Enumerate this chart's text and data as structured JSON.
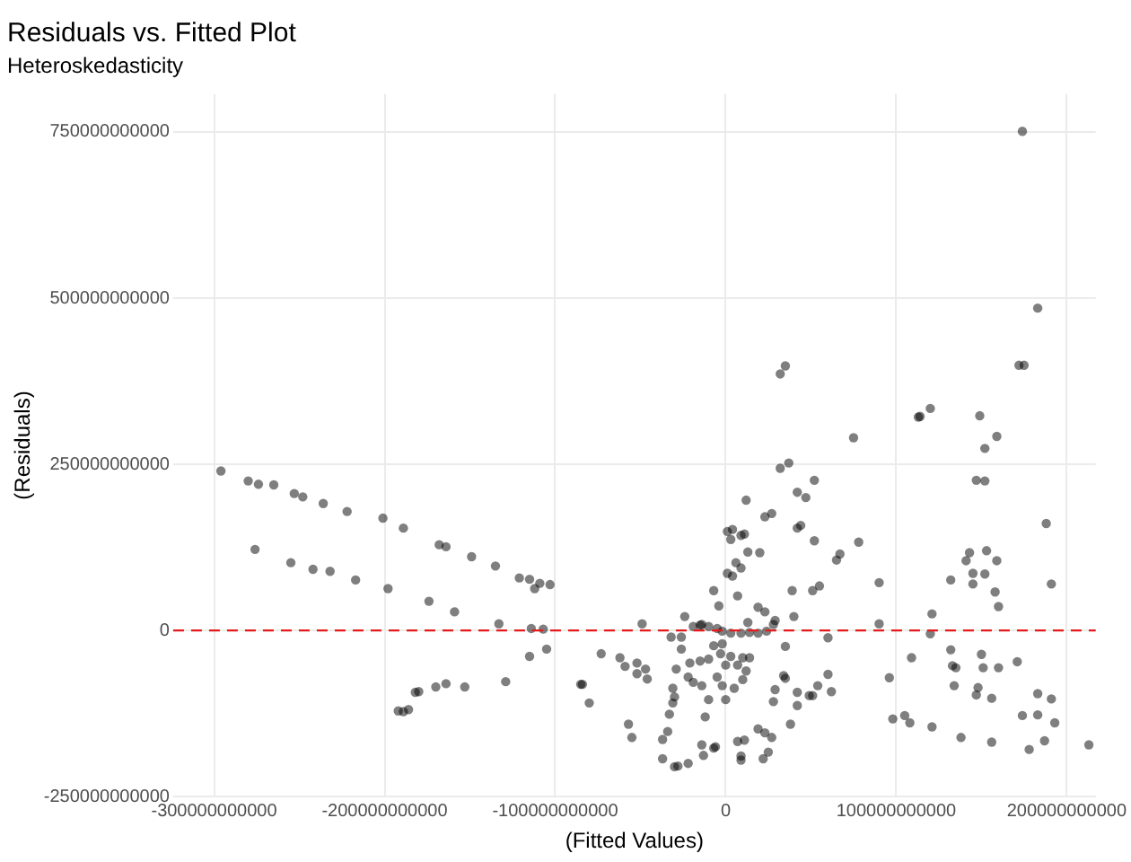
{
  "chart_data": {
    "type": "scatter",
    "title": "Residuals vs. Fitted Plot",
    "subtitle": "Heteroskedasticity",
    "xlabel": "(Fitted Values)",
    "ylabel": "(Residuals)",
    "xlim": [
      -324000000000,
      217000000000
    ],
    "xticks": [
      -300000000000,
      -200000000000,
      -100000000000,
      0,
      100000000000,
      200000000000
    ],
    "ylim": [
      -250000000000,
      807000000000
    ],
    "yticks": [
      -250000000000,
      0,
      250000000000,
      500000000000,
      750000000000
    ],
    "grid": true,
    "legend": false,
    "marker": "circle",
    "ref_lines": [
      {
        "axis": "y",
        "value": 0,
        "color": "#e41a1c",
        "line_style": "dashed"
      }
    ],
    "series": [
      {
        "color": "#000000",
        "x": [
          -296000000000.0,
          -280000000000.0,
          -274000000000.0,
          -265000000000.0,
          -253000000000.0,
          -248000000000.0,
          -236000000000.0,
          -222000000000.0,
          -201000000000.0,
          -189000000000.0,
          -168000000000.0,
          -164000000000.0,
          -149000000000.0,
          -135000000000.0,
          -121000000000.0,
          -115000000000.0,
          -112000000000.0,
          -109000000000.0,
          -103000000000.0,
          -276000000000.0,
          -255000000000.0,
          -242000000000.0,
          -232000000000.0,
          -217000000000.0,
          -198000000000.0,
          -174000000000.0,
          -159000000000.0,
          -133000000000.0,
          -114000000000.0,
          -107000000000.0,
          -105000000000.0,
          -115000000000.0,
          -129000000000.0,
          -153000000000.0,
          -164000000000.0,
          -170000000000.0,
          -180000000000.0,
          -182000000000.0,
          -186000000000.0,
          -189000000000.0,
          -192000000000.0,
          -85000000000.0,
          35000000000.0,
          32000000000.0,
          75000000000.0,
          113000000000.0,
          37000000000.0,
          32000000000.0,
          52000000000.0,
          42000000000.0,
          47000000000.0,
          12000000000.0,
          27000000000.0,
          23000000000.0,
          44000000000.0,
          42000000000.0,
          1000000000.0,
          4000000000.0,
          11000000000.0,
          9000000000.0,
          3000000000.0,
          52000000000.0,
          78000000000.0,
          13000000000.0,
          20000000000.0,
          67000000000.0,
          65000000000.0,
          6000000000.0,
          9000000000.0,
          1000000000.0,
          4000000000.0,
          90000000000.0,
          -7000000000.0,
          39000000000.0,
          55000000000.0,
          51000000000.0,
          7000000000.0,
          -4000000000.0,
          19000000000.0,
          23000000000.0,
          40000000000.0,
          13000000000.0,
          -24000000000.0,
          -49000000000.0,
          29000000000.0,
          90000000000.0,
          -14000000000.0,
          -19000000000.0,
          -15000000000.0,
          -10000000000.0,
          -5000000000.0,
          -2000000000.0,
          3000000000.0,
          9000000000.0,
          14000000000.0,
          19000000000.0,
          24000000000.0,
          28000000000.0,
          -32000000000.0,
          -26000000000.0,
          -26000000000.0,
          -7000000000.0,
          -2000000000.0,
          35000000000.0,
          60000000000.0,
          -73000000000.0,
          -62000000000.0,
          -59000000000.0,
          -52000000000.0,
          -47000000000.0,
          -52000000000.0,
          -46000000000.0,
          -29000000000.0,
          -21000000000.0,
          -15000000000.0,
          -10000000000.0,
          -3000000000.0,
          3000000000.0,
          10000000000.0,
          14000000000.0,
          0,
          7000000000.0,
          -22000000000.0,
          -19000000000.0,
          -14000000000.0,
          -5000000000.0,
          -2000000000.0,
          5000000000.0,
          10000000000.0,
          12000000000.0,
          34000000000.0,
          35000000000.0,
          60000000000.0,
          54000000000.0,
          49000000000.0,
          42000000000.0,
          51000000000.0,
          62000000000.0,
          29000000000.0,
          28000000000.0,
          42000000000.0,
          96000000000.0,
          109000000000.0,
          -84000000000.0,
          -80000000000.0,
          -31000000000.0,
          -30000000000.0,
          -31000000000.0,
          -10000000000.0,
          0,
          -33000000000.0,
          -12000000000.0,
          38000000000.0,
          -57000000000.0,
          -55000000000.0,
          -34000000000.0,
          -37000000000.0,
          19000000000.0,
          23000000000.0,
          27000000000.0,
          98000000000.0,
          105000000000.0,
          108000000000.0,
          -14000000000.0,
          -6000000000.0,
          7000000000.0,
          11000000000.0,
          -13000000000.0,
          9000000000.0,
          9000000000.0,
          25000000000.0,
          22000000000.0,
          -37000000000.0,
          -28000000000.0,
          -22000000000.0,
          -30000000000.0,
          -7000000000.0,
          174000000000.0,
          183000000000.0,
          172000000000.0,
          175000000000.0,
          114000000000.0,
          120000000000.0,
          149000000000.0,
          159000000000.0,
          152000000000.0,
          147000000000.0,
          152000000000.0,
          188000000000.0,
          143000000000.0,
          141000000000.0,
          153000000000.0,
          159000000000.0,
          145000000000.0,
          152000000000.0,
          132000000000.0,
          145000000000.0,
          191000000000.0,
          158000000000.0,
          160000000000.0,
          121000000000.0,
          120000000000.0,
          132000000000.0,
          133000000000.0,
          135000000000.0,
          150000000000.0,
          151000000000.0,
          160000000000.0,
          171000000000.0,
          134000000000.0,
          148000000000.0,
          147000000000.0,
          156000000000.0,
          183000000000.0,
          191000000000.0,
          121000000000.0,
          138000000000.0,
          156000000000.0,
          174000000000.0,
          183000000000.0,
          193000000000.0,
          178000000000.0,
          187000000000.0,
          213000000000.0
        ],
        "values": [
          240000000000.0,
          225000000000.0,
          220000000000.0,
          219000000000.0,
          206000000000.0,
          201000000000.0,
          191000000000.0,
          179000000000.0,
          169000000000.0,
          154000000000.0,
          129000000000.0,
          126000000000.0,
          111000000000.0,
          97000000000.0,
          79000000000.0,
          77000000000.0,
          63000000000.0,
          71000000000.0,
          69000000000.0,
          122000000000.0,
          102000000000.0,
          92000000000.0,
          89000000000.0,
          76000000000.0,
          63000000000.0,
          44000000000.0,
          28000000000.0,
          10000000000.0,
          3000000000.0,
          2000000000.0,
          -28000000000.0,
          -39000000000.0,
          -77000000000.0,
          -85000000000.0,
          -80000000000.0,
          -85000000000.0,
          -92000000000.0,
          -93000000000.0,
          -119000000000.0,
          -122000000000.0,
          -121000000000.0,
          -81000000000.0,
          398000000000.0,
          386000000000.0,
          290000000000.0,
          321000000000.0,
          252000000000.0,
          244000000000.0,
          226000000000.0,
          208000000000.0,
          200000000000.0,
          196000000000.0,
          176000000000.0,
          171000000000.0,
          158000000000.0,
          154000000000.0,
          149000000000.0,
          152000000000.0,
          145000000000.0,
          143000000000.0,
          137000000000.0,
          135000000000.0,
          133000000000.0,
          118000000000.0,
          117000000000.0,
          115000000000.0,
          106000000000.0,
          102000000000.0,
          94000000000.0,
          86000000000.0,
          82000000000.0,
          72000000000.0,
          60000000000.0,
          60000000000.0,
          67000000000.0,
          60000000000.0,
          52000000000.0,
          37000000000.0,
          35000000000.0,
          28000000000.0,
          21000000000.0,
          12000000000.0,
          21000000000.0,
          10000000000.0,
          15000000000.0,
          10000000000.0,
          9000000000.0,
          6000000000.0,
          8000000000.0,
          6000000000.0,
          3000000000.0,
          -1000000000.0,
          -4000000000.0,
          -4000000000.0,
          -3000000000.0,
          -4000000000.0,
          -1000000000.0,
          9000000000.0,
          -10000000000.0,
          -10000000000.0,
          -28000000000.0,
          -23000000000.0,
          -20000000000.0,
          -24000000000.0,
          -11000000000.0,
          -35000000000.0,
          -41000000000.0,
          -54000000000.0,
          -49000000000.0,
          -58000000000.0,
          -65000000000.0,
          -73000000000.0,
          -58000000000.0,
          -49000000000.0,
          -46000000000.0,
          -43000000000.0,
          -35000000000.0,
          -39000000000.0,
          -41000000000.0,
          -41000000000.0,
          -52000000000.0,
          -52000000000.0,
          -70000000000.0,
          -78000000000.0,
          -83000000000.0,
          -70000000000.0,
          -83000000000.0,
          -87000000000.0,
          -74000000000.0,
          -61000000000.0,
          -68000000000.0,
          -72000000000.0,
          -66000000000.0,
          -83000000000.0,
          -98000000000.0,
          -93000000000.0,
          -98000000000.0,
          -92000000000.0,
          -89000000000.0,
          -107000000000.0,
          -113000000000.0,
          -71000000000.0,
          -41000000000.0,
          -81000000000.0,
          -109000000000.0,
          -87000000000.0,
          -100000000000.0,
          -109000000000.0,
          -104000000000.0,
          -104000000000.0,
          -126000000000.0,
          -130000000000.0,
          -141000000000.0,
          -141000000000.0,
          -161000000000.0,
          -152000000000.0,
          -164000000000.0,
          -148000000000.0,
          -154000000000.0,
          -161000000000.0,
          -133000000000.0,
          -128000000000.0,
          -139000000000.0,
          -172000000000.0,
          -175000000000.0,
          -167000000000.0,
          -165000000000.0,
          -188000000000.0,
          -189000000000.0,
          -195000000000.0,
          -183000000000.0,
          -193000000000.0,
          -193000000000.0,
          -204000000000.0,
          -200000000000.0,
          -205000000000.0,
          -177000000000.0,
          751000000000.0,
          485000000000.0,
          399000000000.0,
          399000000000.0,
          322000000000.0,
          334000000000.0,
          323000000000.0,
          292000000000.0,
          274000000000.0,
          226000000000.0,
          225000000000.0,
          161000000000.0,
          117000000000.0,
          105000000000.0,
          120000000000.0,
          105000000000.0,
          86000000000.0,
          85000000000.0,
          76000000000.0,
          70000000000.0,
          70000000000.0,
          58000000000.0,
          36000000000.0,
          25000000000.0,
          -5000000000.0,
          -29000000000.0,
          -53000000000.0,
          -56000000000.0,
          -36000000000.0,
          -56000000000.0,
          -56000000000.0,
          -47000000000.0,
          -83000000000.0,
          -86000000000.0,
          -97000000000.0,
          -102000000000.0,
          -95000000000.0,
          -103000000000.0,
          -145000000000.0,
          -161000000000.0,
          -168000000000.0,
          -128000000000.0,
          -127000000000.0,
          -139000000000.0,
          -179000000000.0,
          -166000000000.0,
          -172000000000.0
        ]
      }
    ]
  }
}
